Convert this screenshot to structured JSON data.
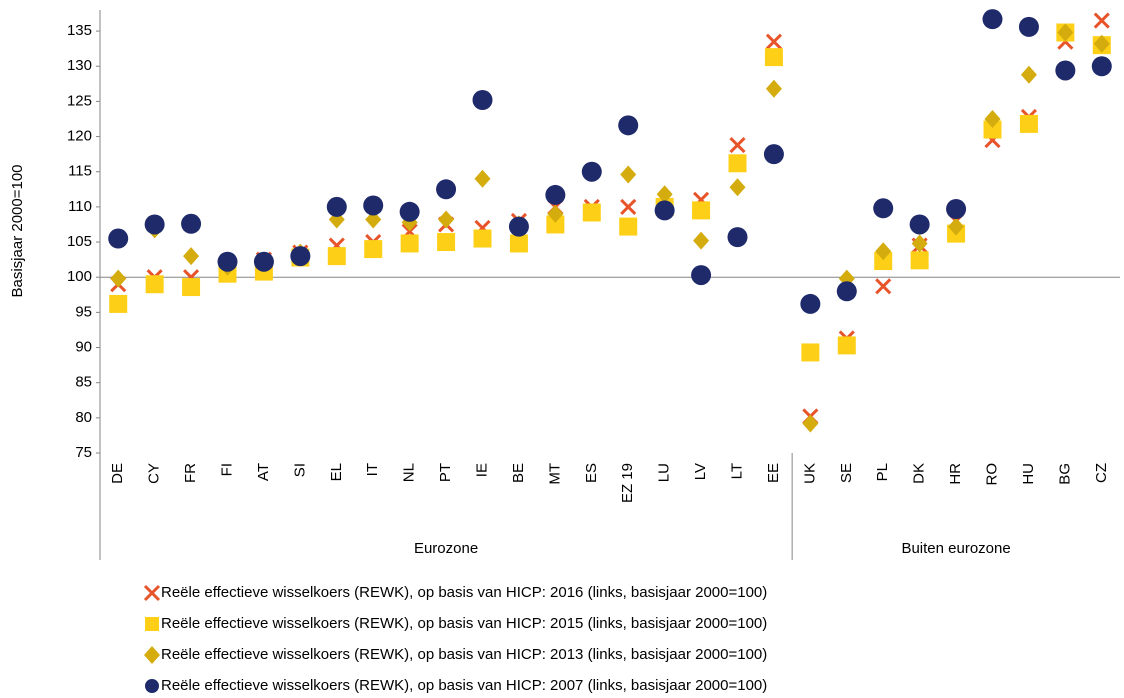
{
  "chart_data": {
    "type": "scatter",
    "y_label": "Basisjaar 2000=100",
    "categories": [
      "DE",
      "CY",
      "FR",
      "FI",
      "AT",
      "SI",
      "EL",
      "IT",
      "NL",
      "PT",
      "IE",
      "BE",
      "MT",
      "ES",
      "EZ 19",
      "LU",
      "LV",
      "LT",
      "EE",
      "UK",
      "SE",
      "PL",
      "DK",
      "HR",
      "RO",
      "HU",
      "BG",
      "CZ"
    ],
    "groups": [
      {
        "label": "Eurozone",
        "count": 19
      },
      {
        "label": "Buiten eurozone",
        "count": 9
      }
    ],
    "ylim": [
      75,
      138
    ],
    "yticks": [
      75,
      80,
      85,
      90,
      95,
      100,
      105,
      110,
      115,
      120,
      125,
      130,
      135
    ],
    "series": [
      {
        "name": "Reële effectieve wisselkoers (REWK), op basis van HICP: 2016 (links, basisjaar 2000=100)",
        "color": "#e8542a",
        "marker": "x",
        "values": [
          99,
          100,
          100,
          101,
          102.5,
          103.5,
          104.5,
          105,
          106.5,
          107.5,
          107,
          108,
          110,
          110,
          110,
          110,
          111,
          118.8,
          133.5,
          80.2,
          91.3,
          98.7,
          104.5,
          108,
          119.5,
          122.8,
          133.5,
          136.5
        ]
      },
      {
        "name": "Reële effectieve wisselkoers (REWK), op basis van HICP: 2015 (links, basisjaar 2000=100)",
        "color": "#fdd017",
        "marker": "square",
        "values": [
          96.2,
          99,
          98.6,
          100.5,
          100.8,
          102.8,
          103,
          104,
          104.8,
          105,
          105.5,
          104.8,
          107.5,
          109.2,
          107.2,
          110,
          109.5,
          116.2,
          131.3,
          89.3,
          90.3,
          102.3,
          102.4,
          106.2,
          121,
          121.8,
          134.8,
          133
        ]
      },
      {
        "name": "Reële effectieve wisselkoers (REWK), op basis van HICP: 2013 (links, basisjaar 2000=100)",
        "color": "#d4ac0d",
        "marker": "diamond",
        "values": [
          99.8,
          106.8,
          103,
          101.5,
          102,
          103.5,
          108.2,
          108.2,
          107.8,
          108.2,
          114,
          107.5,
          109,
          114.8,
          114.6,
          111.8,
          105.2,
          112.8,
          126.8,
          79.2,
          99.8,
          103.7,
          104.8,
          107.2,
          122.5,
          128.8,
          134.8,
          133.2
        ]
      },
      {
        "name": "Reële effectieve wisselkoers (REWK), op basis van HICP: 2007 (links, basisjaar 2000=100)",
        "color": "#1f2a6b",
        "marker": "circle",
        "values": [
          105.5,
          107.5,
          107.6,
          102.2,
          102.2,
          103,
          110,
          110.2,
          109.3,
          112.5,
          125.2,
          107.2,
          111.7,
          115,
          121.6,
          109.5,
          100.3,
          105.7,
          117.5,
          96.2,
          98,
          109.8,
          107.5,
          109.7,
          136.7,
          135.6,
          129.4,
          130
        ]
      }
    ]
  }
}
